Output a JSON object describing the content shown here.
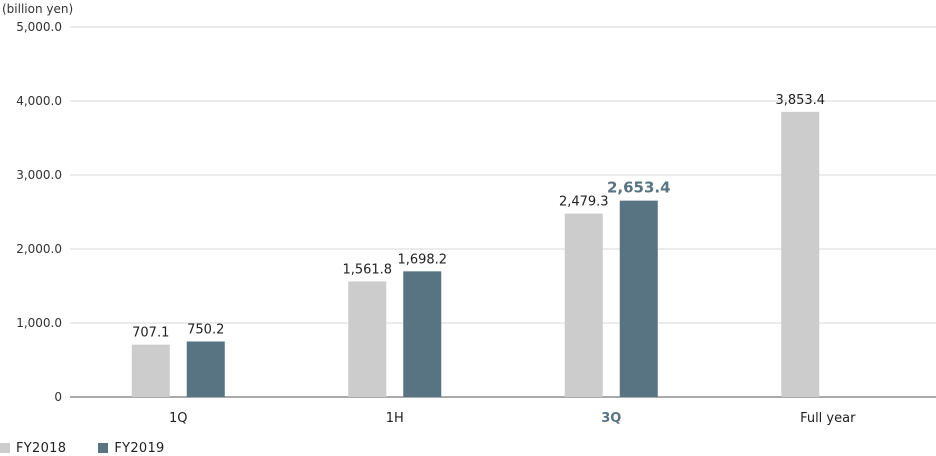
{
  "colors": {
    "fy2018": "#cccccc",
    "fy2019": "#587482",
    "highlight_text": "#587482",
    "grid": "#d8d8d8",
    "axis": "#555555"
  },
  "chart_data": {
    "type": "bar",
    "unit_label": "(billion yen)",
    "categories": [
      "1Q",
      "1H",
      "3Q",
      "Full year"
    ],
    "highlight_category": "3Q",
    "series": [
      {
        "name": "FY2018",
        "values": [
          707.1,
          1561.8,
          2479.3,
          3853.4
        ],
        "labels": [
          "707.1",
          "1,561.8",
          "2,479.3",
          "3,853.4"
        ]
      },
      {
        "name": "FY2019",
        "values": [
          750.2,
          1698.2,
          2653.4,
          null
        ],
        "labels": [
          "750.2",
          "1,698.2",
          "2,653.4",
          ""
        ]
      }
    ],
    "ylim": [
      0,
      5000
    ],
    "yticks": [
      0,
      1000,
      2000,
      3000,
      4000,
      5000
    ],
    "ytick_labels": [
      "0",
      "1,000.0",
      "2,000.0",
      "3,000.0",
      "4,000.0",
      "5,000.0"
    ],
    "grid": true,
    "legend_position": "bottom-left"
  }
}
